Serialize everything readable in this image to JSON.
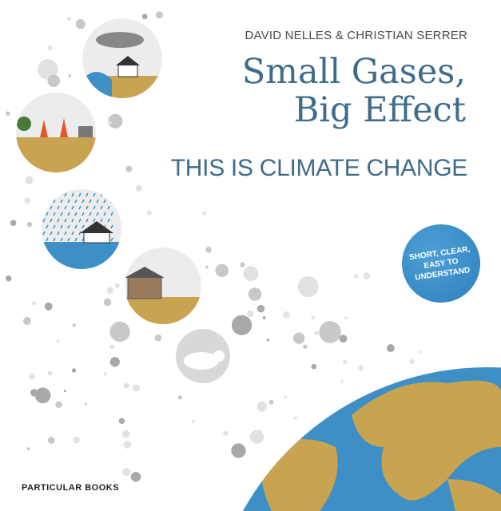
{
  "cover": {
    "authors": "DAVID NELLES & CHRISTIAN SERRER",
    "title_line1": "Small Gases,",
    "title_line2": "Big Effect",
    "subtitle": "THIS IS CLIMATE CHANGE",
    "badge": "SHORT, CLEAR, EASY TO UNDERSTAND",
    "publisher": "PARTICULAR BOOKS"
  },
  "colors": {
    "title": "#3f6c8a",
    "badge": "#3b8fc9",
    "ocean": "#3d8fc6",
    "gold": "#c9a450",
    "dots": "#c8c8c8"
  },
  "illustrations": [
    "storm-flood-icon",
    "wildfire-icon",
    "rain-flood-icon",
    "drought-barn-icon",
    "polar-bear-icon",
    "globe-icon"
  ]
}
